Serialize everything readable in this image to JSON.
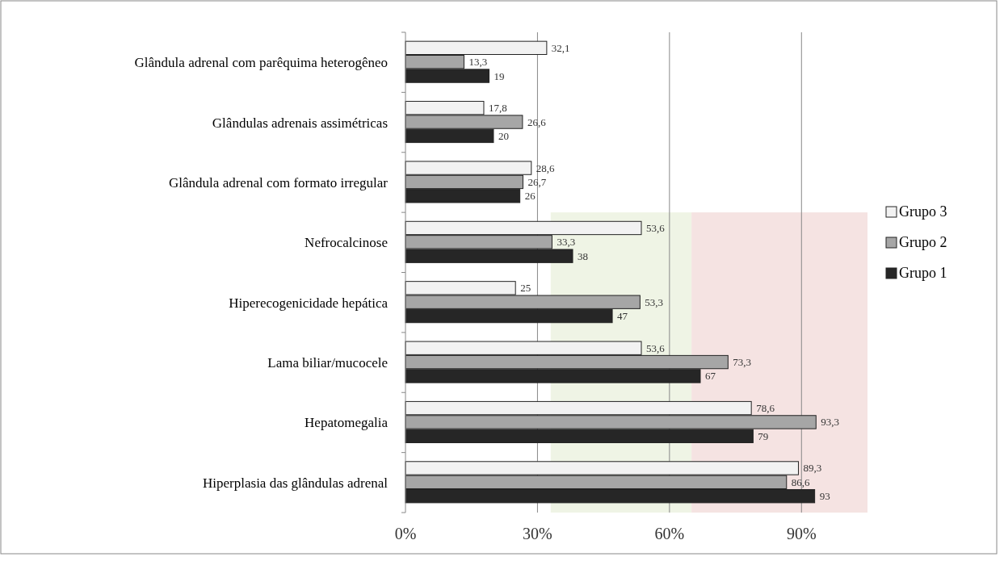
{
  "chart_data": {
    "type": "bar",
    "orientation": "horizontal",
    "categories": [
      "Glândula adrenal com parêquima heterogêneo",
      "Glândulas adrenais assimétricas",
      "Glândula adrenal com formato irregular",
      "Nefrocalcinose",
      "Hiperecogenicidade hepática",
      "Lama biliar/mucocele",
      "Hepatomegalia",
      "Hiperplasia das glândulas adrenal"
    ],
    "series": [
      {
        "name": "Grupo 3",
        "color": "#f2f2f2",
        "values": [
          32.1,
          17.8,
          28.6,
          53.6,
          25,
          53.6,
          78.6,
          89.3
        ],
        "value_labels": [
          "32,1",
          "17,8",
          "28,6",
          "53,6",
          "25",
          "53,6",
          "78,6",
          "89,3"
        ]
      },
      {
        "name": "Grupo 2",
        "color": "#a6a6a6",
        "values": [
          13.3,
          26.6,
          26.7,
          33.3,
          53.3,
          73.3,
          93.3,
          86.6
        ],
        "value_labels": [
          "13,3",
          "26,6",
          "26,7",
          "33,3",
          "53,3",
          "73,3",
          "93,3",
          "86,6"
        ]
      },
      {
        "name": "Grupo 1",
        "color": "#262626",
        "values": [
          19,
          20,
          26,
          38,
          47,
          67,
          79,
          93
        ],
        "value_labels": [
          "19",
          "20",
          "26",
          "38",
          "47",
          "67",
          "79",
          "93"
        ]
      }
    ],
    "xlim": [
      0,
      105
    ],
    "xticks": [
      {
        "value": 0,
        "label": "0%"
      },
      {
        "value": 30,
        "label": "30%"
      },
      {
        "value": 60,
        "label": "60%"
      },
      {
        "value": 90,
        "label": "90%"
      }
    ],
    "grid": "x",
    "legend": "right",
    "bands": [
      {
        "axis": "x",
        "from": 33,
        "to": 65,
        "color": "#ebf1de"
      },
      {
        "axis": "x",
        "from": 65,
        "to": 105,
        "color": "#f2dcdb"
      }
    ]
  }
}
